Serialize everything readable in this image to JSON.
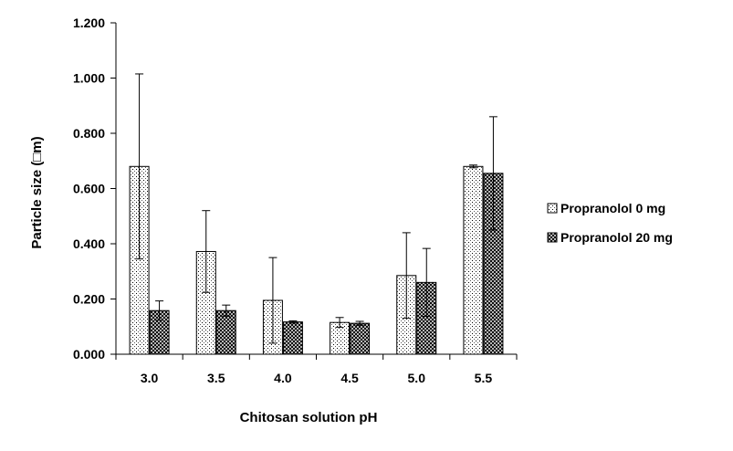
{
  "chart_data": {
    "type": "bar",
    "title": "",
    "xlabel": "Chitosan solution pH",
    "ylabel": "Particle size (□m)",
    "categories": [
      "3.0",
      "3.5",
      "4.0",
      "4.5",
      "5.0",
      "5.5"
    ],
    "yticks": [
      "0.000",
      "0.200",
      "0.400",
      "0.600",
      "0.800",
      "1.000",
      "1.200"
    ],
    "ylim": [
      0,
      1.2
    ],
    "grid": false,
    "legend_position": "right",
    "series": [
      {
        "name": "Propranolol 0 mg",
        "pattern": "dots",
        "values": [
          0.68,
          0.372,
          0.195,
          0.115,
          0.285,
          0.68
        ],
        "errors": [
          0.335,
          0.148,
          0.155,
          0.018,
          0.155,
          0.005
        ]
      },
      {
        "name": "Propranolol 20 mg",
        "pattern": "crosshatch",
        "values": [
          0.158,
          0.158,
          0.117,
          0.112,
          0.26,
          0.655
        ],
        "errors": [
          0.035,
          0.02,
          0.004,
          0.007,
          0.123,
          0.205
        ]
      }
    ],
    "colors": {
      "axis": "#000000",
      "bar_fill": "#ffffff",
      "pattern_ink": "#000000"
    }
  }
}
